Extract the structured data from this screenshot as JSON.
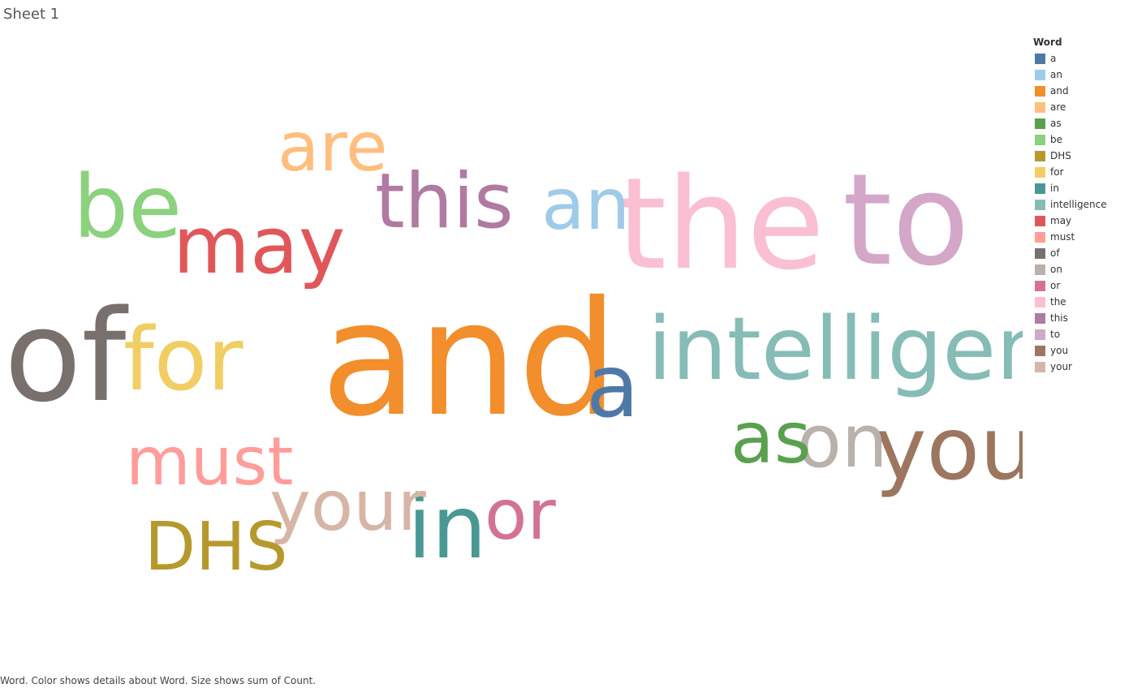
{
  "sheet_title": "Sheet 1",
  "caption": "Word.  Color shows details about Word.  Size shows sum of Count.",
  "legend": {
    "title": "Word",
    "items": [
      {
        "label": "a",
        "color": "#4e79a7"
      },
      {
        "label": "an",
        "color": "#a0cbe8"
      },
      {
        "label": "and",
        "color": "#f28e2b"
      },
      {
        "label": "are",
        "color": "#ffbe7d"
      },
      {
        "label": "as",
        "color": "#59a14f"
      },
      {
        "label": "be",
        "color": "#8cd17d"
      },
      {
        "label": "DHS",
        "color": "#b6992d"
      },
      {
        "label": "for",
        "color": "#f1ce63"
      },
      {
        "label": "in",
        "color": "#499894"
      },
      {
        "label": "intelligence",
        "color": "#86bcb6"
      },
      {
        "label": "may",
        "color": "#e15759"
      },
      {
        "label": "must",
        "color": "#ff9d9a"
      },
      {
        "label": "of",
        "color": "#79706e"
      },
      {
        "label": "on",
        "color": "#bab0ac"
      },
      {
        "label": "or",
        "color": "#d37295"
      },
      {
        "label": "the",
        "color": "#fabfd2"
      },
      {
        "label": "this",
        "color": "#b07aa1"
      },
      {
        "label": "to",
        "color": "#d4a6c8"
      },
      {
        "label": "you",
        "color": "#9d7660"
      },
      {
        "label": "your",
        "color": "#d7b5a6"
      }
    ]
  },
  "chart_data": {
    "type": "wordcloud",
    "color_field": "Word",
    "size_field": "sum of Count",
    "words": [
      {
        "text": "and",
        "weight": 100,
        "color": "#f28e2b"
      },
      {
        "text": "the",
        "weight": 80,
        "color": "#fabfd2"
      },
      {
        "text": "to",
        "weight": 80,
        "color": "#d4a6c8"
      },
      {
        "text": "of",
        "weight": 80,
        "color": "#79706e"
      },
      {
        "text": "intelligence",
        "weight": 55,
        "color": "#86bcb6"
      },
      {
        "text": "a",
        "weight": 55,
        "color": "#4e79a7"
      },
      {
        "text": "for",
        "weight": 55,
        "color": "#f1ce63"
      },
      {
        "text": "be",
        "weight": 55,
        "color": "#8cd17d"
      },
      {
        "text": "you",
        "weight": 55,
        "color": "#9d7660"
      },
      {
        "text": "in",
        "weight": 55,
        "color": "#499894"
      },
      {
        "text": "may",
        "weight": 50,
        "color": "#e15759"
      },
      {
        "text": "this",
        "weight": 48,
        "color": "#b07aa1"
      },
      {
        "text": "on",
        "weight": 46,
        "color": "#bab0ac"
      },
      {
        "text": "an",
        "weight": 45,
        "color": "#a0cbe8"
      },
      {
        "text": "as",
        "weight": 45,
        "color": "#59a14f"
      },
      {
        "text": "your",
        "weight": 44,
        "color": "#d7b5a6"
      },
      {
        "text": "or",
        "weight": 44,
        "color": "#d37295"
      },
      {
        "text": "are",
        "weight": 43,
        "color": "#ffbe7d"
      },
      {
        "text": "DHS",
        "weight": 42,
        "color": "#b6992d"
      },
      {
        "text": "must",
        "weight": 42,
        "color": "#ff9d9a"
      }
    ]
  }
}
